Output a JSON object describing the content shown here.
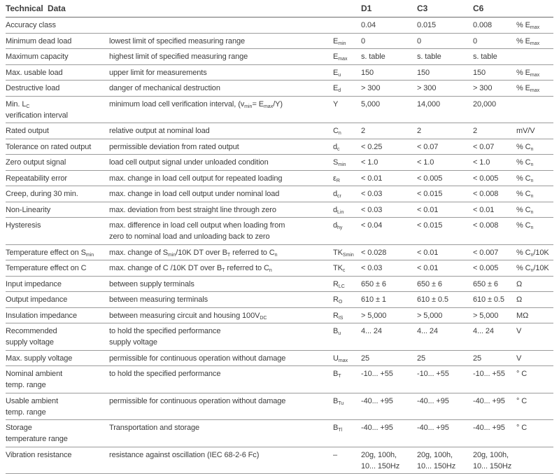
{
  "table": {
    "header": {
      "title": "Technical  Data",
      "d1": "D1",
      "c3": "C3",
      "c6": "C6"
    },
    "rows": [
      {
        "name": "Accuracy class",
        "desc": "",
        "sym": "",
        "d1": "0.04",
        "c3": "0.015",
        "c6": "0.008",
        "unit": "% E_{max}"
      },
      {
        "name": "Minimum dead load",
        "desc": "lowest limit of specified measuring range",
        "sym": "E_{min}",
        "d1": "0",
        "c3": "0",
        "c6": "0",
        "unit": "% E_{max}"
      },
      {
        "name": "Maximum capacity",
        "desc": "highest limit of specified measuring range",
        "sym": "E_{max}",
        "d1": "s. table",
        "c3": "s. table",
        "c6": "s. table",
        "unit": ""
      },
      {
        "name": "Max. usable load",
        "desc": "upper limit for measurements",
        "sym": "E_{u}",
        "d1": "150",
        "c3": "150",
        "c6": "150",
        "unit": "% E_{max}"
      },
      {
        "name": "Destructive load",
        "desc": "danger of mechanical destruction",
        "sym": "E_{d}",
        "d1": "> 300",
        "c3": "> 300",
        "c6": "> 300",
        "unit": "% E_{max}"
      },
      {
        "name": "Min. L_{C}\nverification interval",
        "desc": "minimum load cell verification interval, (v_{min}= E_{max}/Y)",
        "sym": "Y",
        "d1": "5,000",
        "c3": "14,000",
        "c6": "20,000",
        "unit": ""
      },
      {
        "name": "Rated output",
        "desc": "relative output at nominal load",
        "sym": "C_{n}",
        "d1": "2",
        "c3": "2",
        "c6": "2",
        "unit": "mV/V"
      },
      {
        "name": "Tolerance on rated output",
        "desc": "permissible deviation from rated output",
        "sym": "d_{c}",
        "d1": "< 0.25",
        "c3": "< 0.07",
        "c6": "< 0.07",
        "unit": "% C_{n}"
      },
      {
        "name": "Zero output signal",
        "desc": "load cell output signal under unloaded condition",
        "sym": "S_{min}",
        "d1": "< 1.0",
        "c3": "< 1.0",
        "c6": "< 1.0",
        "unit": "% C_{n}"
      },
      {
        "name": "Repeatability error",
        "desc": "max. change in load cell output for repeated loading",
        "sym": "ε_{R}",
        "d1": "< 0.01",
        "c3": "< 0.005",
        "c6": "< 0.005",
        "unit": "% C_{n}"
      },
      {
        "name": "Creep, during 30 min.",
        "desc": "max. change in load cell output under nominal load",
        "sym": "d_{cr}",
        "d1": "< 0.03",
        "c3": "< 0.015",
        "c6": "< 0.008",
        "unit": "% C_{n}"
      },
      {
        "name": "Non-Linearity",
        "desc": "max. deviation from best straight line through zero",
        "sym": "d_{Lin}",
        "d1": "< 0.03",
        "c3": "< 0.01",
        "c6": "< 0.01",
        "unit": "% C_{n}"
      },
      {
        "name": "Hysteresis",
        "desc": "max. difference in load cell output when loading from\nzero to nominal load and unloading back to zero",
        "sym": "d_{hy}",
        "d1": "< 0.04",
        "c3": "< 0.015",
        "c6": "< 0.008",
        "unit": "% C_{n}"
      },
      {
        "name": "Temperature effect on S_{min}",
        "desc": "max. change of S_{min}/10K DT over B_{T} referred to C_{n}",
        "sym": "TK_{Smin}",
        "d1": "< 0.028",
        "c3": "< 0.01",
        "c6": "< 0.007",
        "unit": "% C_{n}/10K"
      },
      {
        "name": "Temperature effect on C",
        "desc": "max. change of C /10K DT over B_{T} referred to C_{n}",
        "sym": "TK_{c}",
        "d1": "< 0.03",
        "c3": "< 0.01",
        "c6": "< 0.005",
        "unit": "% C_{n}/10K"
      },
      {
        "name": "Input impedance",
        "desc": "between supply terminals",
        "sym": "R_{LC}",
        "d1": "650 ± 6",
        "c3": "650 ± 6",
        "c6": "650 ± 6",
        "unit": "Ω"
      },
      {
        "name": "Output impedance",
        "desc": "between measuring terminals",
        "sym": "R_{O}",
        "d1": "610 ± 1",
        "c3": "610 ± 0.5",
        "c6": "610 ± 0.5",
        "unit": "Ω"
      },
      {
        "name": "Insulation impedance",
        "desc": "between measuring circuit and housing 100V_{DC}",
        "sym": "R_{IS}",
        "d1": "> 5,000",
        "c3": "> 5,000",
        "c6": "> 5,000",
        "unit": "MΩ"
      },
      {
        "name": "Recommended\nsupply voltage",
        "desc": "to hold the specified performance\nsupply voltage",
        "sym": "B_{u}",
        "d1": "4... 24",
        "c3": "4... 24",
        "c6": "4... 24",
        "unit": "V"
      },
      {
        "name": "Max. supply voltage",
        "desc": "permissible for continuous operation without damage",
        "sym": "U_{max}",
        "d1": "25",
        "c3": "25",
        "c6": "25",
        "unit": "V"
      },
      {
        "name": "Nominal ambient\ntemp. range",
        "desc": "to hold the specified performance",
        "sym": "B_{T}",
        "d1": "-10... +55",
        "c3": "-10... +55",
        "c6": "-10... +55",
        "unit": "° C"
      },
      {
        "name": "Usable ambient\ntemp. range",
        "desc": "permissible for continuous operation without damage",
        "sym": "B_{Tu}",
        "d1": "-40... +95",
        "c3": "-40... +95",
        "c6": "-40... +95",
        "unit": "° C"
      },
      {
        "name": "Storage\ntemperature range",
        "desc": "Transportation and storage",
        "sym": "B_{Tl}",
        "d1": "-40... +95",
        "c3": "-40... +95",
        "c6": "-40... +95",
        "unit": "° C"
      },
      {
        "name": "Vibration resistance",
        "desc": "resistance against oscillation (IEC 68-2-6 Fc)",
        "sym": "–",
        "d1": "20g, 100h,\n10... 150Hz",
        "c3": "20g, 100h,\n10... 150Hz",
        "c6": "20g, 100h,\n10... 150Hz",
        "unit": ""
      }
    ]
  }
}
